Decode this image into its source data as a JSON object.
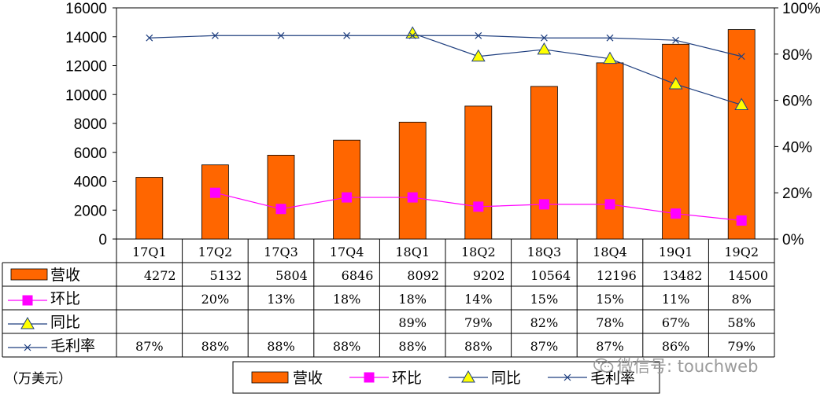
{
  "chart_data": {
    "type": "bar",
    "categories": [
      "17Q1",
      "17Q2",
      "17Q3",
      "17Q4",
      "18Q1",
      "18Q2",
      "18Q3",
      "18Q4",
      "19Q1",
      "19Q2"
    ],
    "series": [
      {
        "name": "营收",
        "type": "bar",
        "axis": "left",
        "color": "#ff6600",
        "values": [
          4272,
          5132,
          5804,
          6846,
          8092,
          9202,
          10564,
          12196,
          13482,
          14500
        ],
        "labels": [
          "4272",
          "5132",
          "5804",
          "6846",
          "8092",
          "9202",
          "10564",
          "12196",
          "13482",
          "14500"
        ]
      },
      {
        "name": "环比",
        "type": "line",
        "axis": "right",
        "color": "#ff00ff",
        "marker": "square",
        "values": [
          null,
          20,
          13,
          18,
          18,
          14,
          15,
          15,
          11,
          8
        ],
        "labels": [
          "",
          "20%",
          "13%",
          "18%",
          "18%",
          "14%",
          "15%",
          "15%",
          "11%",
          "8%"
        ]
      },
      {
        "name": "同比",
        "type": "line",
        "axis": "right",
        "color": "#1f3f7f",
        "marker": "triangle",
        "values": [
          null,
          null,
          null,
          null,
          89,
          79,
          82,
          78,
          67,
          58
        ],
        "labels": [
          "",
          "",
          "",
          "",
          "89%",
          "79%",
          "82%",
          "78%",
          "67%",
          "58%"
        ]
      },
      {
        "name": "毛利率",
        "type": "line",
        "axis": "right",
        "color": "#1f3f7f",
        "marker": "x",
        "values": [
          87,
          88,
          88,
          88,
          88,
          88,
          87,
          87,
          86,
          79
        ],
        "labels": [
          "87%",
          "88%",
          "88%",
          "88%",
          "88%",
          "88%",
          "87%",
          "87%",
          "86%",
          "79%"
        ]
      }
    ],
    "yleft": {
      "min": 0,
      "max": 16000,
      "ticks": [
        "0",
        "2000",
        "4000",
        "6000",
        "8000",
        "10000",
        "12000",
        "14000",
        "16000"
      ]
    },
    "yright": {
      "min": 0,
      "max": 100,
      "ticks": [
        "0%",
        "20%",
        "40%",
        "60%",
        "80%",
        "100%"
      ]
    },
    "unit_label": "（万美元）",
    "legend_position": "bottom"
  },
  "watermark": "微信号: touchweb"
}
